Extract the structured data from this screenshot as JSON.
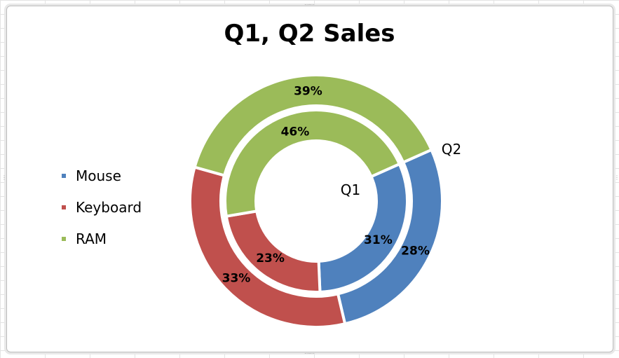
{
  "chart_data": {
    "type": "pie",
    "subtype": "doughnut",
    "title": "Q1, Q2 Sales",
    "categories": [
      "Mouse",
      "Keyboard",
      "RAM"
    ],
    "colors": [
      "#4F81BD",
      "#C0504D",
      "#9BBB59"
    ],
    "series": [
      {
        "name": "Q1",
        "values": [
          31,
          23,
          46
        ],
        "labels": [
          "31%",
          "23%",
          "46%"
        ]
      },
      {
        "name": "Q2",
        "values": [
          28,
          33,
          39
        ],
        "labels": [
          "28%",
          "33%",
          "39%"
        ]
      }
    ],
    "legend": "left"
  }
}
